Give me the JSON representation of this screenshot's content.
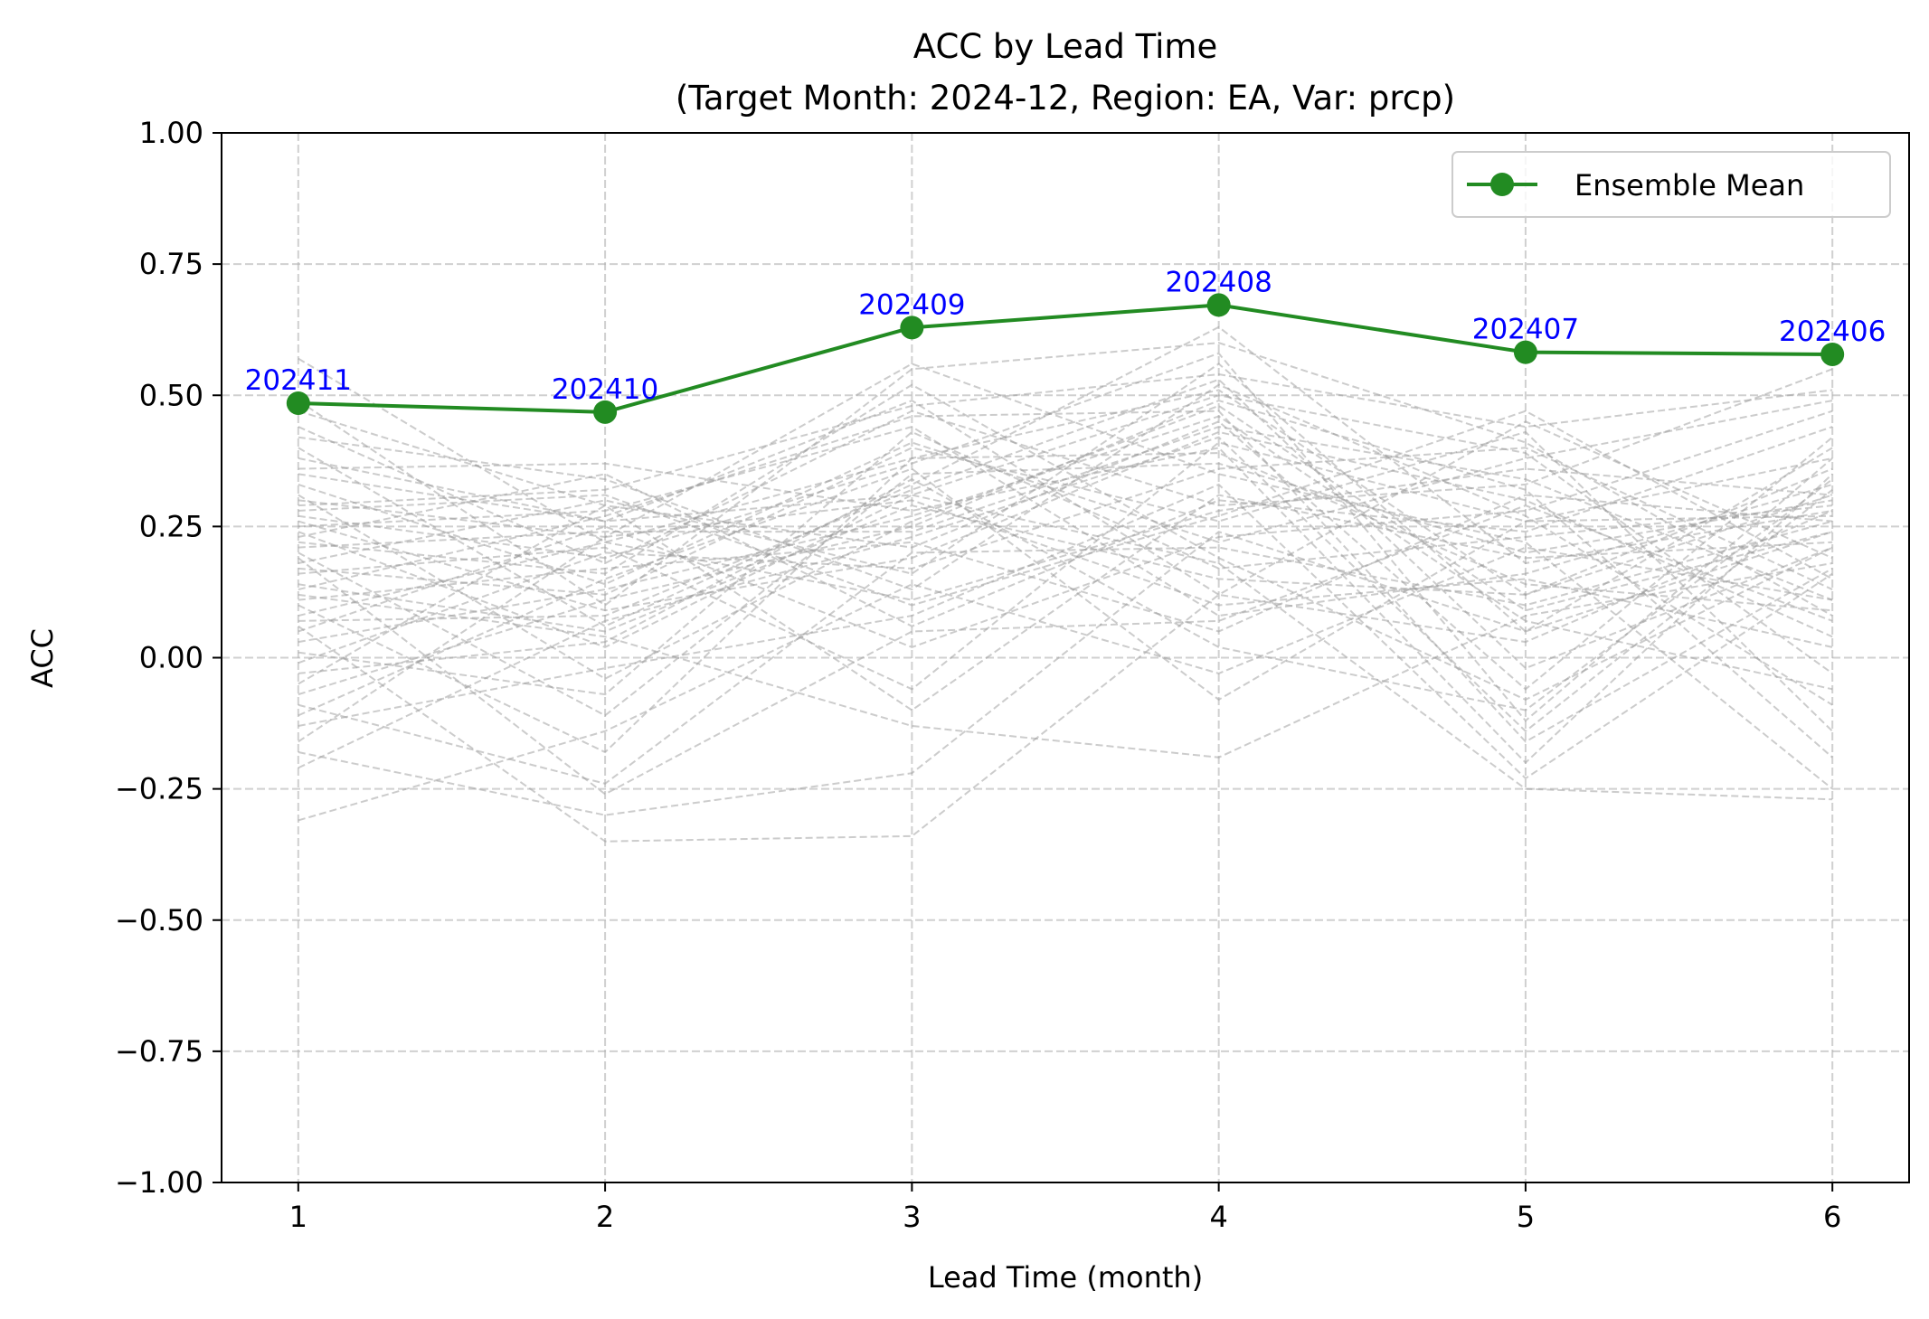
{
  "chart_data": {
    "type": "line",
    "title": "ACC by Lead Time",
    "subtitle": "(Target Month: 2024-12, Region: EA, Var: prcp)",
    "xlabel": "Lead Time (month)",
    "ylabel": "ACC",
    "x": [
      1,
      2,
      3,
      4,
      5,
      6
    ],
    "xticks": [
      "1",
      "2",
      "3",
      "4",
      "5",
      "6"
    ],
    "xlim": [
      0.75,
      6.25
    ],
    "ylim": [
      -1.0,
      1.0
    ],
    "yticks": [
      "−1.00",
      "−0.75",
      "−0.50",
      "−0.25",
      "0.00",
      "0.25",
      "0.50",
      "0.75",
      "1.00"
    ],
    "grid": true,
    "legend_position": "top-right",
    "series": [
      {
        "name": "Ensemble Mean",
        "color": "#228B22",
        "marker": "circle",
        "values": [
          0.485,
          0.468,
          0.629,
          0.672,
          0.582,
          0.578
        ],
        "point_labels": [
          "202411",
          "202410",
          "202409",
          "202408",
          "202407",
          "202406"
        ],
        "point_label_color": "#0000FF"
      }
    ],
    "member_style": {
      "color": "#999999",
      "dash": "dashed"
    },
    "members": [
      [
        0.57,
        0.22,
        0.38,
        0.51,
        0.12,
        0.31
      ],
      [
        0.49,
        0.1,
        0.55,
        0.6,
        0.41,
        0.08
      ],
      [
        0.47,
        0.29,
        0.21,
        0.45,
        -0.06,
        0.42
      ],
      [
        0.44,
        0.18,
        0.47,
        0.29,
        0.33,
        0.55
      ],
      [
        0.42,
        0.34,
        0.13,
        0.52,
        0.27,
        -0.09
      ],
      [
        0.4,
        0.06,
        0.33,
        0.63,
        0.18,
        0.28
      ],
      [
        0.38,
        0.26,
        0.49,
        0.12,
        0.45,
        0.19
      ],
      [
        0.36,
        0.37,
        0.28,
        0.4,
        -0.2,
        0.35
      ],
      [
        0.33,
        0.14,
        0.41,
        0.22,
        0.38,
        0.49
      ],
      [
        0.31,
        -0.04,
        0.26,
        0.48,
        0.09,
        0.24
      ],
      [
        0.3,
        0.23,
        0.56,
        0.35,
        0.22,
        -0.25
      ],
      [
        0.28,
        0.31,
        0.1,
        0.27,
        0.47,
        0.15
      ],
      [
        0.27,
        0.19,
        0.37,
        0.58,
        -0.12,
        0.38
      ],
      [
        0.26,
        0.09,
        0.19,
        0.43,
        0.3,
        0.04
      ],
      [
        0.25,
        0.28,
        0.44,
        0.08,
        0.16,
        0.33
      ],
      [
        0.24,
        0.02,
        0.31,
        0.5,
        0.39,
        -0.03
      ],
      [
        0.23,
        0.35,
        0.06,
        0.3,
        0.24,
        0.44
      ],
      [
        0.22,
        0.16,
        0.52,
        0.19,
        -0.08,
        0.21
      ],
      [
        0.21,
        0.24,
        0.24,
        0.44,
        0.34,
        0.11
      ],
      [
        0.2,
        -0.11,
        0.35,
        0.37,
        0.2,
        0.3
      ],
      [
        0.18,
        0.3,
        0.16,
        0.56,
        0.05,
        0.4
      ],
      [
        0.17,
        0.12,
        0.4,
        0.26,
        0.43,
        -0.14
      ],
      [
        0.16,
        0.21,
        -0.06,
        0.41,
        0.26,
        0.27
      ],
      [
        0.14,
        0.05,
        0.29,
        0.15,
        0.12,
        0.36
      ],
      [
        0.13,
        0.27,
        0.46,
        0.47,
        -0.16,
        0.17
      ],
      [
        0.11,
        0.17,
        0.22,
        0.05,
        0.31,
        0.26
      ],
      [
        0.1,
        -0.18,
        0.38,
        0.39,
        0.14,
        0.09
      ],
      [
        0.08,
        0.22,
        0.11,
        0.28,
        0.36,
        0.31
      ],
      [
        0.07,
        0.08,
        0.32,
        0.53,
        -0.02,
        0.21
      ],
      [
        0.05,
        0.25,
        0.02,
        0.23,
        0.28,
        0.47
      ],
      [
        0.03,
        0.13,
        0.27,
        0.46,
        0.07,
        -0.06
      ],
      [
        0.01,
        -0.07,
        0.43,
        0.17,
        0.23,
        0.29
      ],
      [
        -0.01,
        0.2,
        0.17,
        0.36,
        0.4,
        0.13
      ],
      [
        -0.03,
        0.03,
        0.34,
        0.02,
        -0.1,
        0.34
      ],
      [
        -0.05,
        0.29,
        -0.1,
        0.31,
        0.19,
        0.22
      ],
      [
        -0.07,
        0.11,
        0.25,
        0.49,
        0.32,
        -0.19
      ],
      [
        -0.09,
        -0.24,
        0.2,
        0.21,
        0.1,
        0.26
      ],
      [
        -0.11,
        0.15,
        0.36,
        -0.08,
        0.26,
        0.38
      ],
      [
        -0.13,
        -0.02,
        0.08,
        0.33,
        -0.23,
        0.16
      ],
      [
        -0.16,
        0.23,
        0.3,
        0.1,
        0.15,
        0.02
      ],
      [
        -0.18,
        -0.3,
        -0.22,
        0.24,
        0.05,
        0.24
      ],
      [
        -0.21,
        0.07,
        0.23,
        0.42,
        -0.14,
        0.32
      ],
      [
        -0.31,
        -0.14,
        0.14,
        -0.03,
        0.21,
        0.11
      ],
      [
        0.06,
        -0.35,
        -0.34,
        0.12,
        0.03,
        0.28
      ],
      [
        0.29,
        0.32,
        0.48,
        0.54,
        0.44,
        0.51
      ],
      [
        0.35,
        0.26,
        0.31,
        0.18,
        -0.25,
        -0.27
      ],
      [
        0.12,
        0.04,
        -0.13,
        -0.19,
        0.08,
        0.18
      ],
      [
        0.19,
        -0.26,
        0.05,
        0.07,
        0.29,
        0.07
      ]
    ]
  }
}
